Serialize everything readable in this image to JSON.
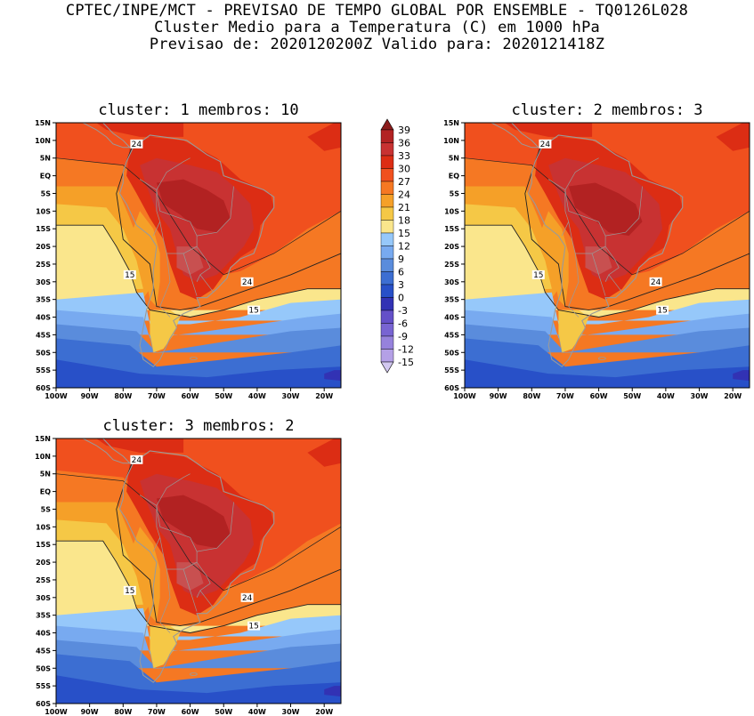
{
  "header": {
    "line1": "CPTEC/INPE/MCT - PREVISAO DE TEMPO GLOBAL POR ENSEMBLE - TQ0126L028",
    "line2": "Cluster Medio para a Temperatura (C) em 1000 hPa",
    "line3": "Previsao de: 2020120200Z   Valido para: 2020121418Z"
  },
  "panels": [
    {
      "title": "cluster: 1  membros: 10"
    },
    {
      "title": "cluster: 2  membros: 3"
    },
    {
      "title": "cluster: 3  membros: 2"
    }
  ],
  "axes": {
    "lat_labels": [
      "15N",
      "10N",
      "5N",
      "EQ",
      "5S",
      "10S",
      "15S",
      "20S",
      "25S",
      "30S",
      "35S",
      "40S",
      "45S",
      "50S",
      "55S",
      "60S"
    ],
    "lon_labels": [
      "100W",
      "90W",
      "80W",
      "70W",
      "60W",
      "50W",
      "40W",
      "30W",
      "20W"
    ]
  },
  "contour_labels": [
    "24",
    "24",
    "15",
    "15"
  ],
  "colorbar": {
    "levels": [
      "39",
      "36",
      "33",
      "30",
      "27",
      "24",
      "21",
      "18",
      "15",
      "12",
      "9",
      "6",
      "3",
      "0",
      "-3",
      "-6",
      "-9",
      "-12",
      "-15"
    ],
    "colors": [
      "#8c1d1d",
      "#b22222",
      "#c83232",
      "#dc2d14",
      "#f0501e",
      "#f57823",
      "#f5a028",
      "#f5c846",
      "#fae68c",
      "#96c8fa",
      "#78aaf0",
      "#5a8cdc",
      "#3c6ed2",
      "#2850c8",
      "#3232b4",
      "#6450c8",
      "#7864d2",
      "#9682dc",
      "#b4a0e6",
      "#d2c8f0"
    ]
  },
  "chart_data": {
    "type": "heatmap",
    "variable": "Temperatura (C) em 1000 hPa",
    "lat_range": [
      -60,
      15
    ],
    "lon_range": [
      -100,
      -15
    ],
    "contour_levels": [
      -15,
      -12,
      -9,
      -6,
      -3,
      0,
      3,
      6,
      9,
      12,
      15,
      18,
      21,
      24,
      27,
      30,
      33,
      36,
      39
    ],
    "highlighted_contours": [
      15,
      24
    ]
  }
}
